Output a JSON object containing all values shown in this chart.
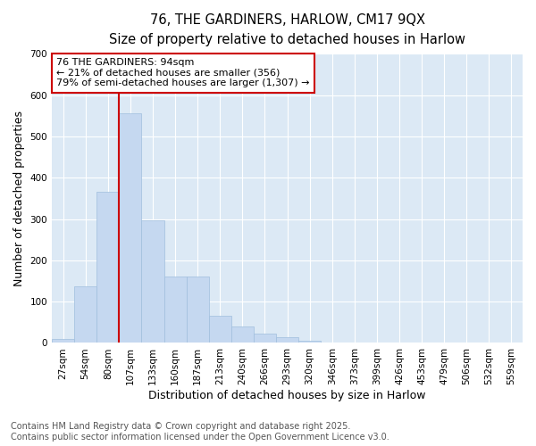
{
  "title_line1": "76, THE GARDINERS, HARLOW, CM17 9QX",
  "title_line2": "Size of property relative to detached houses in Harlow",
  "xlabel": "Distribution of detached houses by size in Harlow",
  "ylabel": "Number of detached properties",
  "bar_color": "#c5d8f0",
  "bar_edge_color": "#a0bedd",
  "background_color": "#dce9f5",
  "grid_color": "#ffffff",
  "fig_background": "#ffffff",
  "categories": [
    "27sqm",
    "54sqm",
    "80sqm",
    "107sqm",
    "133sqm",
    "160sqm",
    "187sqm",
    "213sqm",
    "240sqm",
    "266sqm",
    "293sqm",
    "320sqm",
    "346sqm",
    "373sqm",
    "399sqm",
    "426sqm",
    "453sqm",
    "479sqm",
    "506sqm",
    "532sqm",
    "559sqm"
  ],
  "values": [
    10,
    138,
    365,
    555,
    297,
    160,
    160,
    65,
    40,
    23,
    13,
    5,
    1,
    0,
    0,
    0,
    0,
    0,
    0,
    0,
    0
  ],
  "ylim": [
    0,
    700
  ],
  "yticks": [
    0,
    100,
    200,
    300,
    400,
    500,
    600,
    700
  ],
  "vline_color": "#cc0000",
  "annotation_text": "76 THE GARDINERS: 94sqm\n← 21% of detached houses are smaller (356)\n79% of semi-detached houses are larger (1,307) →",
  "annotation_box_color": "#ffffff",
  "annotation_box_edge": "#cc0000",
  "footer_line1": "Contains HM Land Registry data © Crown copyright and database right 2025.",
  "footer_line2": "Contains public sector information licensed under the Open Government Licence v3.0.",
  "title_fontsize": 10.5,
  "subtitle_fontsize": 9.5,
  "tick_fontsize": 7.5,
  "label_fontsize": 9,
  "annotation_fontsize": 8,
  "footer_fontsize": 7
}
